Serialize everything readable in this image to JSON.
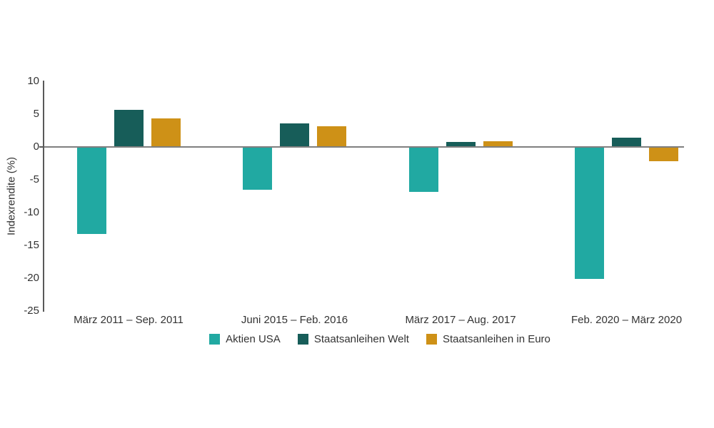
{
  "chart_data": {
    "type": "bar",
    "title": "",
    "ylabel": "Indexrendite (%)",
    "xlabel": "",
    "ylim": [
      -25,
      10
    ],
    "yticks": [
      10,
      5,
      0,
      -5,
      -10,
      -15,
      -20,
      -25
    ],
    "grid": false,
    "legend_position": "bottom-center",
    "categories": [
      "März 2011 – Sep. 2011",
      "Juni 2015 – Feb. 2016",
      "März 2017 – Aug. 2017",
      "Feb. 2020 – März 2020"
    ],
    "series": [
      {
        "name": "Aktien USA",
        "color": "#21A9A2",
        "values": [
          -13.3,
          -6.5,
          -6.8,
          -20.1
        ]
      },
      {
        "name": "Staatsanleihen Welt",
        "color": "#175D59",
        "values": [
          5.6,
          3.6,
          0.8,
          1.4
        ]
      },
      {
        "name": "Staatsanleihen in Euro",
        "color": "#CE9117",
        "values": [
          4.3,
          3.1,
          0.9,
          -2.2
        ]
      }
    ]
  },
  "colors": {
    "axis_line": "#595959",
    "zero_line": "#7F7F7F",
    "text": "#333333",
    "background": "#FFFFFF"
  }
}
